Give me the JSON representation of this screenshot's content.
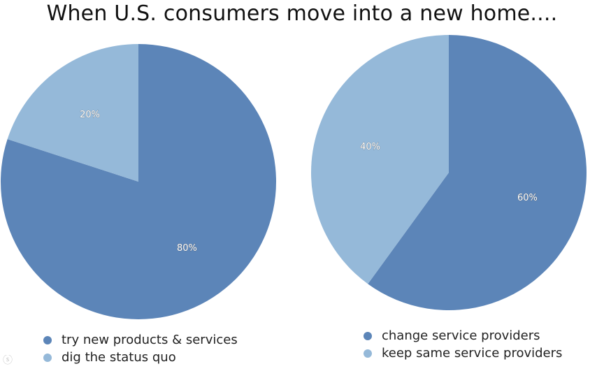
{
  "title": "When U.S. consumers move into a new home....",
  "colors": {
    "dark": "#5c85b8",
    "light": "#95b9d9"
  },
  "chart_data": [
    {
      "type": "pie",
      "title": "",
      "start_angle_deg": 0,
      "slices": [
        {
          "label": "try new products &  services",
          "value": 80,
          "display": "80%",
          "color": "#5c85b8"
        },
        {
          "label": "dig the status quo",
          "value": 20,
          "display": "20%",
          "color": "#95b9d9"
        }
      ],
      "legend": "bottom-left"
    },
    {
      "type": "pie",
      "title": "",
      "start_angle_deg": 0,
      "slices": [
        {
          "label": "change service providers",
          "value": 60,
          "display": "60%",
          "color": "#5c85b8"
        },
        {
          "label": "keep same service providers",
          "value": 40,
          "display": "40%",
          "color": "#95b9d9"
        }
      ],
      "legend": "bottom-right"
    }
  ]
}
